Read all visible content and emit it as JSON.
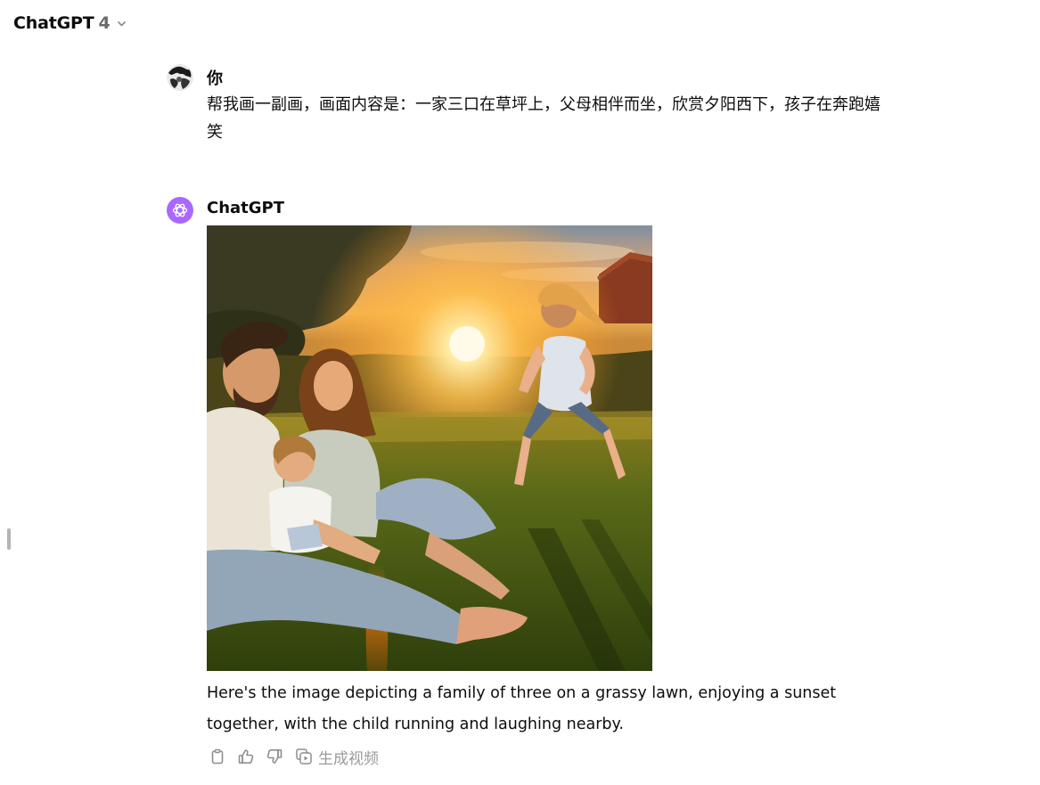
{
  "header": {
    "model_name": "ChatGPT",
    "model_version": "4",
    "dropdown_icon": "chevron-down-icon"
  },
  "conversation": {
    "user_message": {
      "author": "你",
      "avatar_icon": "user-avatar",
      "text": "帮我画一副画，画面内容是：一家三口在草坪上，父母相伴而坐，欣赏夕阳西下，孩子在奔跑嬉笑"
    },
    "assistant_message": {
      "author": "ChatGPT",
      "avatar_icon": "openai-logo-icon",
      "image_description": "family of three on a grassy lawn at sunset",
      "text": "Here's the image depicting a family of three on a grassy lawn, enjoying a sunset together, with the child running and laughing nearby.",
      "actions": {
        "copy_icon": "clipboard-icon",
        "like_icon": "thumbs-up-icon",
        "dislike_icon": "thumbs-down-icon",
        "video_icon": "video-generate-icon",
        "video_label": "生成视频"
      }
    }
  },
  "colors": {
    "bot_avatar": "#ab68ff",
    "text": "#0d0d0d",
    "muted": "#9b9b9b",
    "version": "#6b6b6b"
  }
}
